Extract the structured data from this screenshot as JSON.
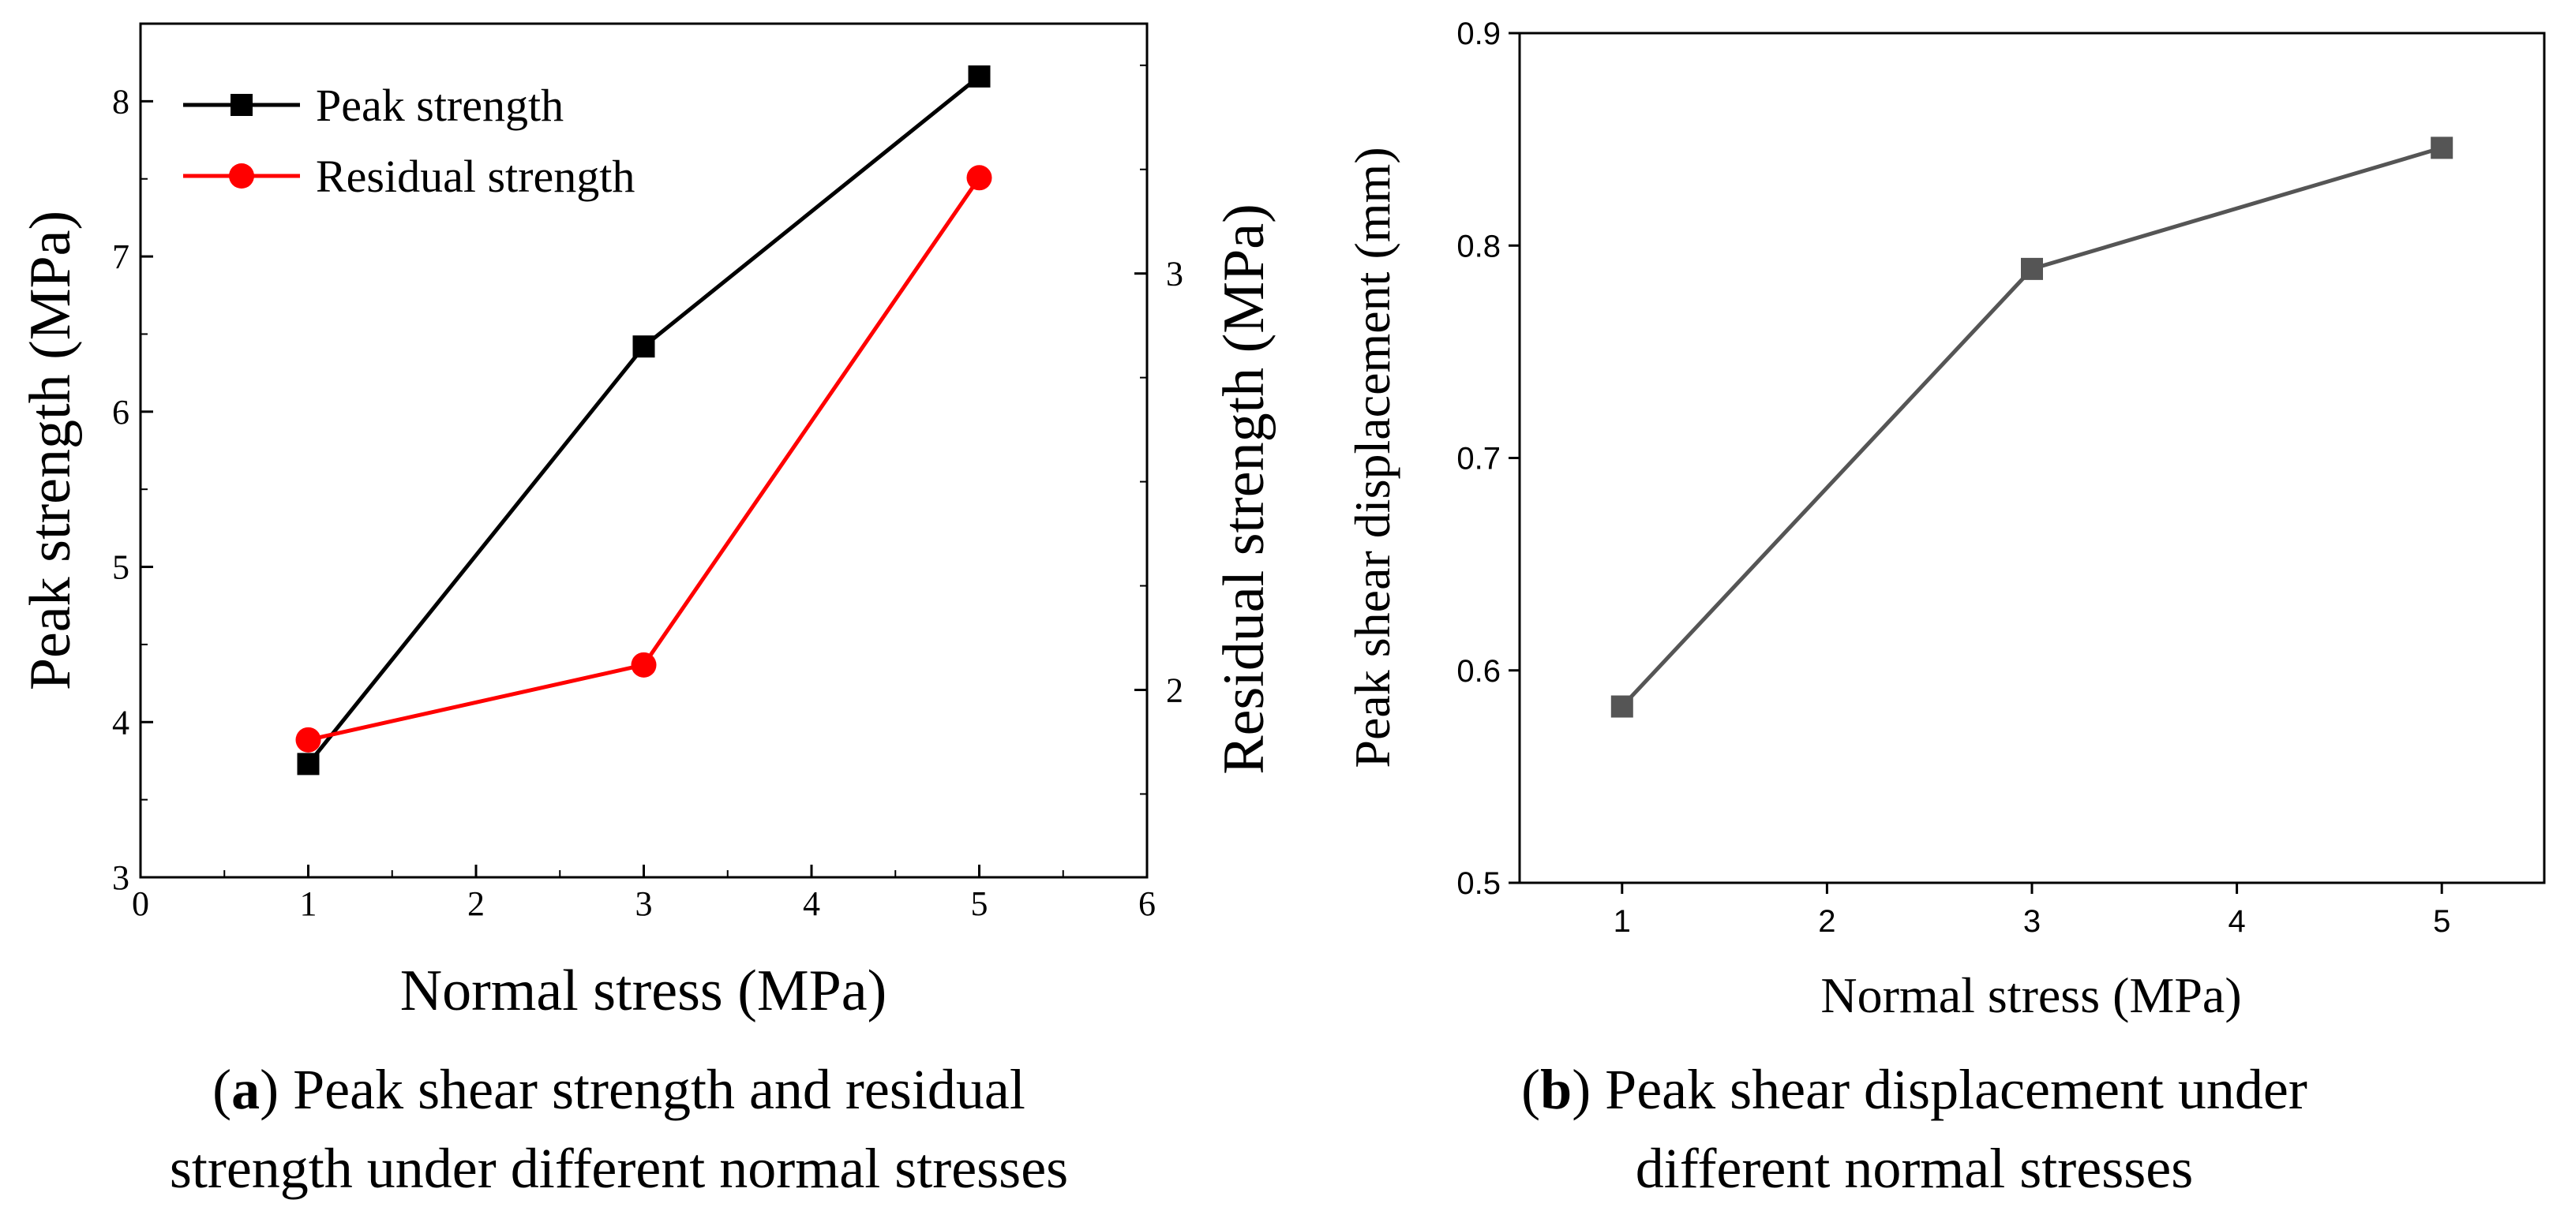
{
  "chart_data": [
    {
      "type": "line",
      "panel": "a",
      "x": [
        1,
        3,
        5
      ],
      "xlim": [
        0,
        6
      ],
      "xticks": [
        "0",
        "1",
        "2",
        "3",
        "4",
        "5",
        "6"
      ],
      "xlabel": "Normal stress (MPa)",
      "ylabel": "Peak strength (MPa)",
      "ylim": [
        3,
        8.5
      ],
      "yticks": [
        "3",
        "4",
        "5",
        "6",
        "7",
        "8"
      ],
      "y2label": "Residual strength (MPa)",
      "y2lim": [
        1.55,
        3.6
      ],
      "y2ticks": [
        "2",
        "3"
      ],
      "series": [
        {
          "name": "Peak strength",
          "axis": "left",
          "marker": "square",
          "color": "#000000",
          "values": [
            3.73,
            6.42,
            8.16
          ]
        },
        {
          "name": "Residual strength",
          "axis": "right",
          "marker": "circle",
          "color": "#ff0000",
          "values": [
            1.88,
            2.06,
            3.23
          ]
        }
      ],
      "legend": "top-left",
      "caption_tag": "a",
      "caption": [
        "Peak shear strength and residual",
        "strength under different normal stresses"
      ]
    },
    {
      "type": "line",
      "panel": "b",
      "x": [
        1,
        3,
        5
      ],
      "xlim": [
        0.5,
        5.5
      ],
      "xticks": [
        "1",
        "2",
        "3",
        "4",
        "5"
      ],
      "xlabel": "Normal stress (MPa)",
      "ylabel": "Peak shear displacement (mm)",
      "ylim": [
        0.5,
        0.9
      ],
      "yticks": [
        "0.5",
        "0.6",
        "0.7",
        "0.8",
        "0.9"
      ],
      "series": [
        {
          "name": "Peak shear displacement",
          "marker": "square",
          "color": "#555555",
          "values": [
            0.583,
            0.789,
            0.846
          ]
        }
      ],
      "caption_tag": "b",
      "caption": [
        "Peak shear displacement under",
        "different normal stresses"
      ]
    }
  ]
}
